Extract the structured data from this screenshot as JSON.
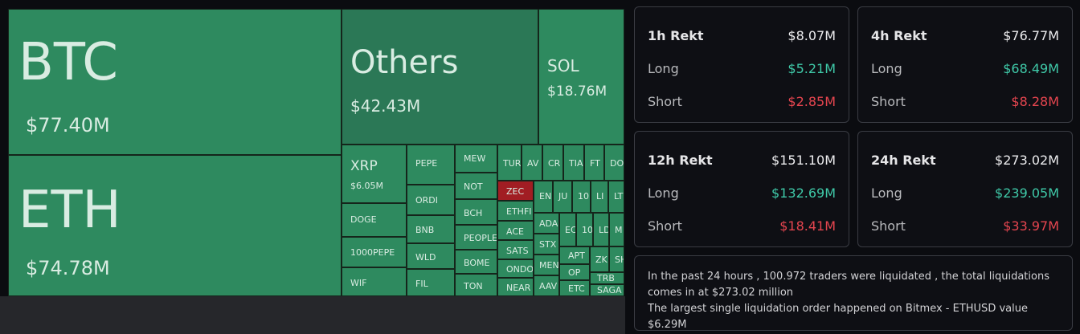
{
  "treemap": {
    "cells": [
      {
        "symbol": "BTC",
        "value": "$77.40M"
      },
      {
        "symbol": "ETH",
        "value": "$74.78M"
      },
      {
        "symbol": "Others",
        "value": "$42.43M"
      },
      {
        "symbol": "SOL",
        "value": "$18.76M"
      },
      {
        "symbol": "XRP",
        "value": "$6.05M"
      },
      {
        "symbol": "DOGE"
      },
      {
        "symbol": "1000PEPE"
      },
      {
        "symbol": "WIF"
      },
      {
        "symbol": "PEPE"
      },
      {
        "symbol": "ORDI"
      },
      {
        "symbol": "BNB"
      },
      {
        "symbol": "WLD"
      },
      {
        "symbol": "FIL"
      },
      {
        "symbol": "MEW"
      },
      {
        "symbol": "NOT"
      },
      {
        "symbol": "BCH"
      },
      {
        "symbol": "PEOPLE"
      },
      {
        "symbol": "BOME"
      },
      {
        "symbol": "TON"
      },
      {
        "symbol": "TUR"
      },
      {
        "symbol": "AV"
      },
      {
        "symbol": "CR"
      },
      {
        "symbol": "TIA"
      },
      {
        "symbol": "FT"
      },
      {
        "symbol": "DO"
      },
      {
        "symbol": "ZEC"
      },
      {
        "symbol": "ETHFI"
      },
      {
        "symbol": "ACE"
      },
      {
        "symbol": "SATS"
      },
      {
        "symbol": "ONDO"
      },
      {
        "symbol": "NEAR"
      },
      {
        "symbol": "EN"
      },
      {
        "symbol": "JU"
      },
      {
        "symbol": "10"
      },
      {
        "symbol": "LI"
      },
      {
        "symbol": "LT"
      },
      {
        "symbol": "ADA"
      },
      {
        "symbol": "EC"
      },
      {
        "symbol": "10"
      },
      {
        "symbol": "LD"
      },
      {
        "symbol": "M"
      },
      {
        "symbol": "STX"
      },
      {
        "symbol": "MEN"
      },
      {
        "symbol": "AAV"
      },
      {
        "symbol": "APT"
      },
      {
        "symbol": "OP"
      },
      {
        "symbol": "ETC"
      },
      {
        "symbol": "ZK"
      },
      {
        "symbol": "SH"
      },
      {
        "symbol": "TRB"
      },
      {
        "symbol": "SAGA"
      }
    ]
  },
  "panels": [
    {
      "title": "1h Rekt",
      "total": "$8.07M",
      "long_label": "Long",
      "long": "$5.21M",
      "short_label": "Short",
      "short": "$2.85M"
    },
    {
      "title": "4h Rekt",
      "total": "$76.77M",
      "long_label": "Long",
      "long": "$68.49M",
      "short_label": "Short",
      "short": "$8.28M"
    },
    {
      "title": "12h Rekt",
      "total": "$151.10M",
      "long_label": "Long",
      "long": "$132.69M",
      "short_label": "Short",
      "short": "$18.41M"
    },
    {
      "title": "24h Rekt",
      "total": "$273.02M",
      "long_label": "Long",
      "long": "$239.05M",
      "short_label": "Short",
      "short": "$33.97M"
    }
  ],
  "summary": {
    "line1": "In the past 24 hours , 100.972 traders were liquidated , the total liquidations comes in at $273.02 million",
    "line2": "The largest single liquidation order happened on Bitmex - ETHUSD value $6.29M"
  },
  "colors": {
    "long": "#3fc9a8",
    "short": "#e5454f",
    "tile": "#2e8a5f",
    "tile_loss": "#a11d23"
  }
}
